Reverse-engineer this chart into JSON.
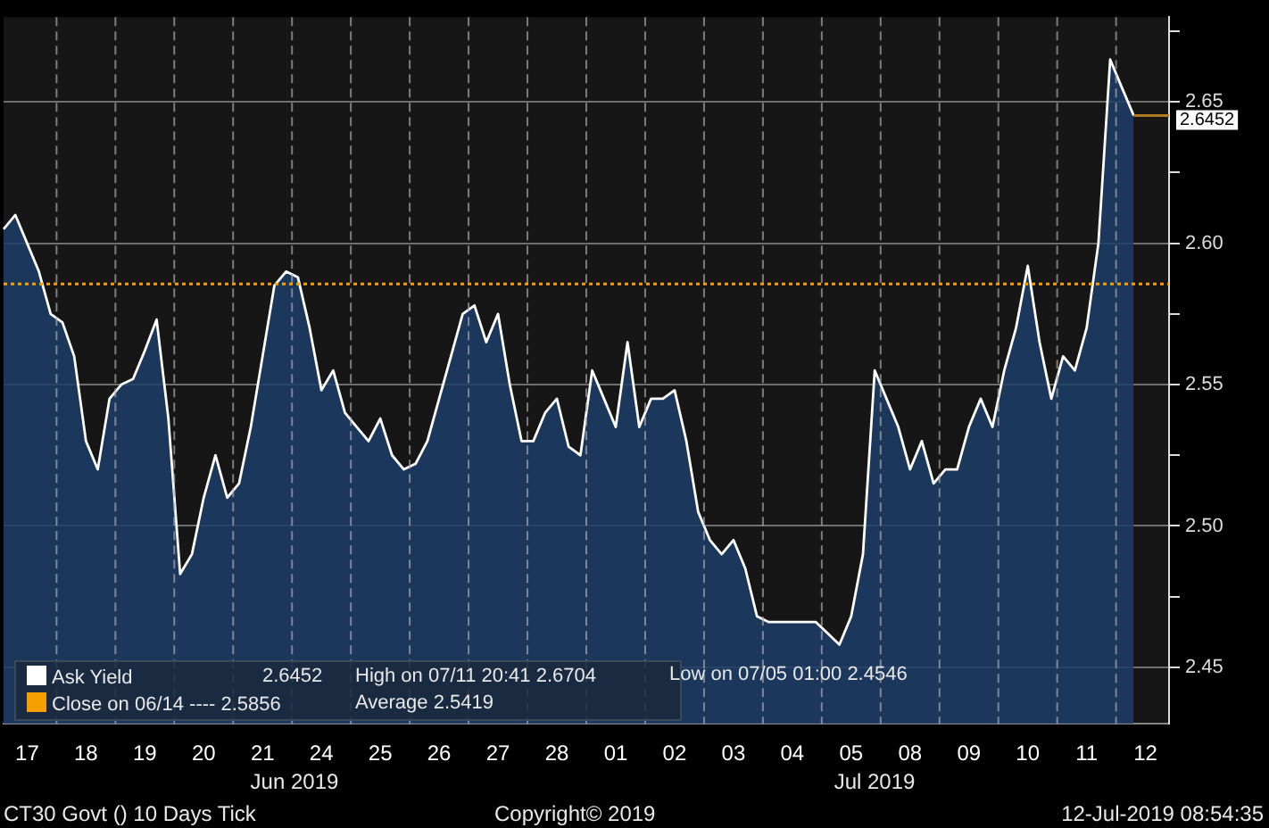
{
  "chart_data": {
    "type": "area",
    "categories": [
      null,
      null,
      "17",
      null,
      null,
      null,
      null,
      "18",
      null,
      null,
      null,
      null,
      "19",
      null,
      null,
      null,
      null,
      "20",
      null,
      null,
      null,
      null,
      "21",
      null,
      null,
      null,
      null,
      "24",
      null,
      null,
      null,
      null,
      "25",
      null,
      null,
      null,
      null,
      "26",
      null,
      null,
      null,
      null,
      "27",
      null,
      null,
      null,
      null,
      "28",
      null,
      null,
      null,
      null,
      "01",
      null,
      null,
      null,
      null,
      "02",
      null,
      null,
      null,
      null,
      "03",
      null,
      null,
      null,
      null,
      "04",
      null,
      null,
      null,
      null,
      "05",
      null,
      null,
      null,
      null,
      "08",
      null,
      null,
      null,
      null,
      "09",
      null,
      null,
      null,
      null,
      "10",
      null,
      null,
      null,
      null,
      "11",
      null,
      null,
      null,
      null,
      "12",
      null,
      null
    ],
    "series": [
      {
        "name": "Ask Yield",
        "color": "#ffffff",
        "values": [
          2.605,
          2.61,
          2.6,
          2.59,
          2.575,
          2.572,
          2.56,
          2.53,
          2.52,
          2.545,
          2.55,
          2.552,
          2.562,
          2.573,
          2.538,
          2.483,
          2.49,
          2.51,
          2.525,
          2.51,
          2.515,
          2.535,
          2.56,
          2.585,
          2.59,
          2.588,
          2.57,
          2.548,
          2.555,
          2.54,
          2.535,
          2.53,
          2.538,
          2.525,
          2.52,
          2.522,
          2.53,
          2.545,
          2.56,
          2.575,
          2.578,
          2.565,
          2.575,
          2.55,
          2.53,
          2.53,
          2.54,
          2.545,
          2.528,
          2.525,
          2.555,
          2.545,
          2.535,
          2.565,
          2.535,
          2.545,
          2.545,
          2.548,
          2.53,
          2.505,
          2.495,
          2.49,
          2.495,
          2.485,
          2.468,
          2.466,
          2.466,
          2.466,
          2.466,
          2.466,
          2.462,
          2.458,
          2.468,
          2.49,
          2.555,
          2.545,
          2.535,
          2.52,
          2.53,
          2.515,
          2.52,
          2.52,
          2.535,
          2.545,
          2.535,
          2.555,
          2.57,
          2.592,
          2.565,
          2.545,
          2.56,
          2.555,
          2.57,
          2.6,
          2.665,
          2.655,
          2.6452,
          null,
          null,
          null
        ]
      }
    ],
    "ylim": [
      2.43,
      2.68
    ],
    "yticks": [
      2.45,
      {
        "value": 2.475,
        "label": null
      },
      {
        "value": 2.5,
        "label": "2.50"
      },
      {
        "value": 2.525,
        "label": null
      },
      2.55,
      {
        "value": 2.575,
        "label": null
      },
      {
        "value": 2.6,
        "label": "2.60"
      },
      {
        "value": 2.625,
        "label": null
      },
      2.65,
      {
        "value": 2.675,
        "label": null
      }
    ],
    "grid": true,
    "legend": "bottom left",
    "marker": "none",
    "ref_lines": [
      {
        "axis": "y",
        "value": 2.5856,
        "label": "Close on 06/14 ---- 2.5856",
        "color": "#f5a000",
        "line_style": "dotted"
      },
      {
        "axis": "y",
        "value": 2.6452,
        "label": "2.6452",
        "color": "#b07a20",
        "line_style": "solid"
      }
    ],
    "annotations": [
      "2.6452",
      "High on 07/11 20:41 2.6704",
      "Low on 07/05 01:00 2.4546",
      "Average 2.5419",
      "Jun 2019",
      "Jul 2019",
      "CT30 Govt () 10 Days  Tick",
      "Copyright© 2019",
      "12-Jul-2019 08:54:35"
    ]
  }
}
